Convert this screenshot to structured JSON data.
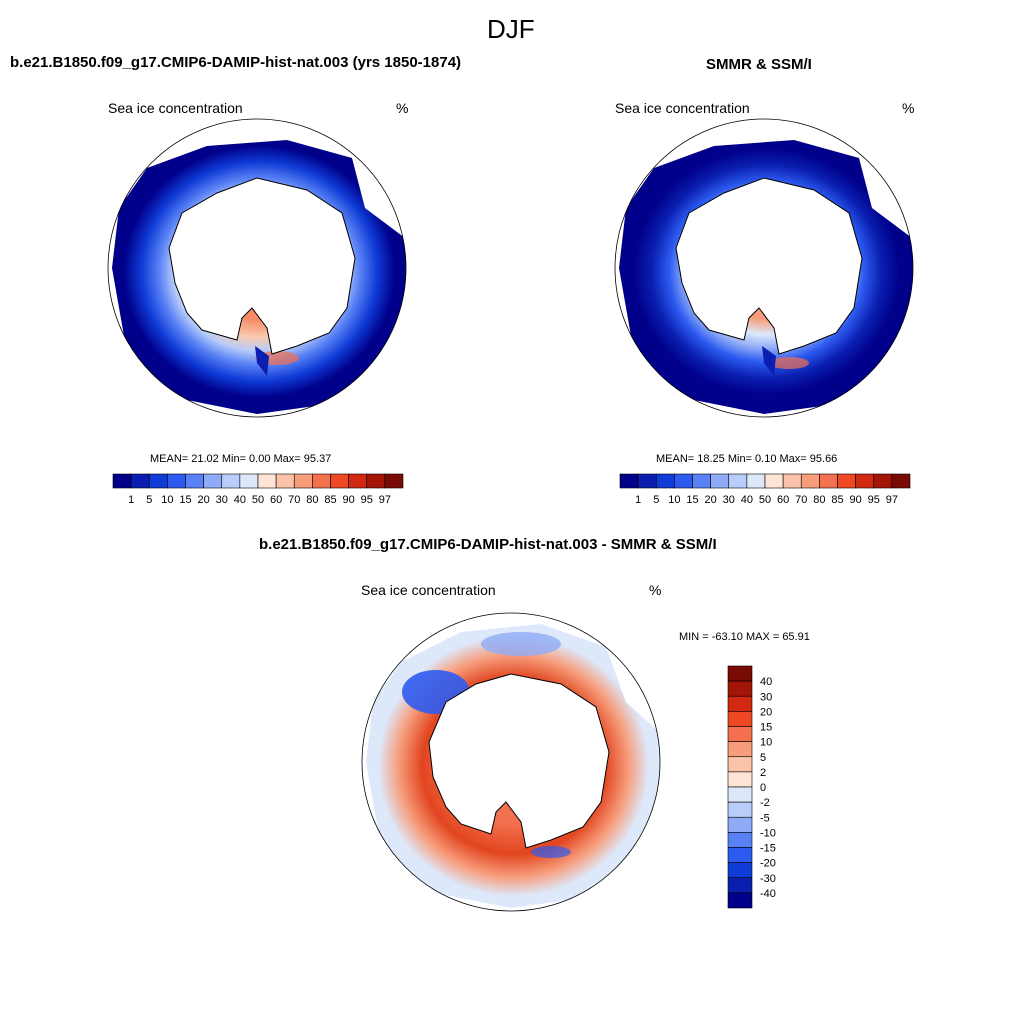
{
  "main_title": "DJF",
  "panels": [
    {
      "title": "b.e21.B1850.f09_g17.CMIP6-DAMIP-hist-nat.003 (yrs 1850-1874)",
      "left_label": "Sea ice concentration",
      "right_label": "%",
      "stats": "MEAN=  21.02  Min=   0.00  Max=  95.37"
    },
    {
      "title": "SMMR & SSM/I",
      "left_label": "Sea ice concentration",
      "right_label": "%",
      "stats": "MEAN=  18.25  Min=   0.10  Max=  95.66"
    },
    {
      "title": "b.e21.B1850.f09_g17.CMIP6-DAMIP-hist-nat.003 - SMMR & SSM/I",
      "left_label": "Sea ice concentration",
      "right_label": "%",
      "stats": "MIN = -63.10 MAX =  65.91"
    }
  ],
  "conc_colorbar": {
    "labels": [
      "1",
      "5",
      "10",
      "15",
      "20",
      "30",
      "40",
      "50",
      "60",
      "70",
      "80",
      "85",
      "90",
      "95",
      "97"
    ],
    "colors": [
      "#00008b",
      "#0a1fb0",
      "#0f3bd6",
      "#2d5bf0",
      "#5a82f5",
      "#8fabf7",
      "#b8cdf9",
      "#dde9fb",
      "#fde4d4",
      "#fbc3a9",
      "#f79d7c",
      "#f4714f",
      "#ee4824",
      "#d22a12",
      "#a31506",
      "#7a0a04"
    ]
  },
  "diff_colorbar": {
    "labels": [
      "40",
      "30",
      "20",
      "15",
      "10",
      "5",
      "2",
      "0",
      "-2",
      "-5",
      "-10",
      "-15",
      "-20",
      "-30",
      "-40"
    ],
    "colors": [
      "#7a0a04",
      "#a31506",
      "#d22a12",
      "#ee4824",
      "#f4714f",
      "#f79d7c",
      "#fbc3a9",
      "#fde4d4",
      "#dde9fb",
      "#b8cdf9",
      "#8fabf7",
      "#5a82f5",
      "#2d5bf0",
      "#0f3bd6",
      "#0a1fb0",
      "#00008b"
    ]
  }
}
